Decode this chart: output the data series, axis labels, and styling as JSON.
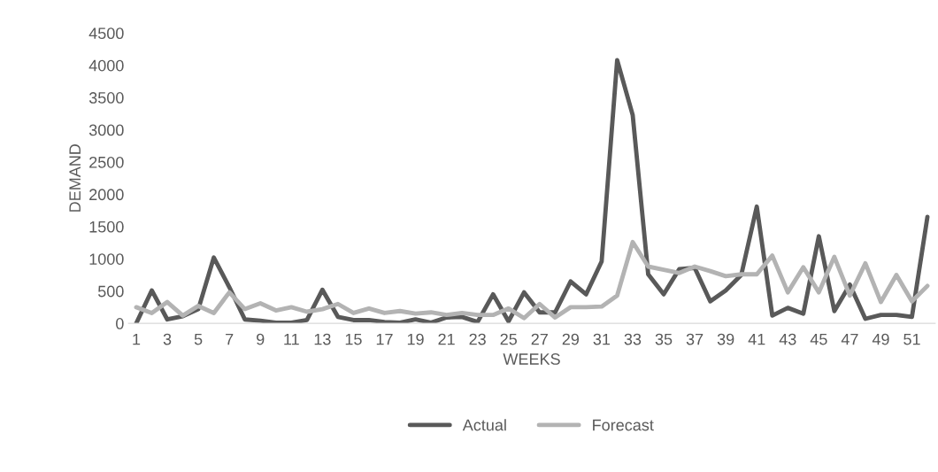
{
  "chart_data": {
    "type": "line",
    "xlabel": "WEEKS",
    "ylabel": "DEMAND",
    "categories": [
      "1",
      null,
      "3",
      null,
      "5",
      null,
      "7",
      null,
      "9",
      null,
      "11",
      null,
      "13",
      null,
      "15",
      null,
      "17",
      null,
      "19",
      null,
      "21",
      null,
      "23",
      null,
      "25",
      null,
      "27",
      null,
      "29",
      null,
      "31",
      null,
      "33",
      null,
      "35",
      null,
      "37",
      null,
      "39",
      null,
      "41",
      null,
      "43",
      null,
      "45",
      null,
      "47",
      null,
      "49",
      null,
      "51",
      null
    ],
    "series": [
      {
        "name": "Actual",
        "color": "#595959",
        "values": [
          0,
          510,
          60,
          110,
          220,
          1020,
          560,
          60,
          40,
          10,
          10,
          50,
          520,
          100,
          50,
          50,
          20,
          10,
          60,
          10,
          90,
          100,
          20,
          450,
          30,
          480,
          170,
          170,
          650,
          450,
          960,
          4080,
          3230,
          760,
          450,
          840,
          860,
          340,
          510,
          750,
          1810,
          120,
          240,
          150,
          1350,
          190,
          600,
          70,
          130,
          130,
          100,
          1650
        ]
      },
      {
        "name": "Forecast",
        "color": "#b3b3b3",
        "values": [
          250,
          160,
          330,
          120,
          270,
          160,
          480,
          220,
          310,
          200,
          250,
          180,
          220,
          300,
          160,
          230,
          160,
          190,
          150,
          170,
          130,
          160,
          130,
          130,
          230,
          80,
          300,
          90,
          250,
          250,
          260,
          430,
          1260,
          880,
          830,
          780,
          880,
          810,
          730,
          760,
          760,
          1050,
          480,
          870,
          480,
          1030,
          430,
          930,
          330,
          750,
          340,
          580
        ]
      }
    ],
    "ylim": [
      0,
      4500
    ],
    "yticks": [
      0,
      500,
      1000,
      1500,
      2000,
      2500,
      3000,
      3500,
      4000,
      4500
    ],
    "grid": false,
    "legend": "bottom",
    "marker": "none",
    "line_style": "solid"
  }
}
